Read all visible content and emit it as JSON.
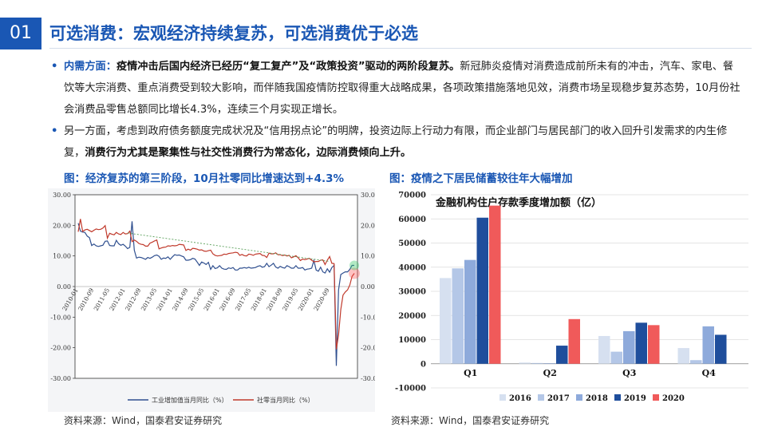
{
  "slide": {
    "number": "01",
    "title": "可选消费：宏观经济持续复苏，可选消费优于必选",
    "bullet1_lead": "内需方面：",
    "bullet1_bold": "疫情冲击后国内经济已经历“复工复产”及“政策投资”驱动的两阶段复苏。",
    "bullet1_rest": "新冠肺炎疫情对消费造成前所未有的冲击，汽车、家电、餐饮等大宗消费、重点消费受到较大影响，而伴随我国疫情防控取得重大战略成果，各项政策措施落地见效，消费市场呈现稳步复苏态势，10月份社会消费品零售总额同比增长4.3%，连续三个月实现正增长。",
    "bullet2_rest": "另一方面，考虑到政府债务额度完成状况及“信用拐点论”的明牌，投资边际上行动力有限，而企业部门与居民部门的收入回升引发需求的内生修复，",
    "bullet2_bold": "消费行为尤其是聚集性与社交性消费行为常态化，边际消费倾向上升。"
  },
  "left_caption": "图：经济复苏的第三阶段，10月社零同比增速达到+4.3%",
  "right_caption": "图：疫情之下居民储蓄较往年大幅增加",
  "left_source": "资料来源：Wind，国泰君安证券研究",
  "right_source": "资料来源：Wind，国泰君安证券研究",
  "colors": {
    "brand": "#1a57b4",
    "industrial": "#2f4f8f",
    "retail": "#c0392b"
  },
  "chart_data": [
    {
      "type": "line",
      "ylim": [
        -30,
        30
      ],
      "yticks_left": [
        "30.00",
        "20.00",
        "10.00",
        "0.00",
        "-10.00",
        "-20.00",
        "-30.00"
      ],
      "yticks_right": [
        "30.00",
        "20.00",
        "10.00",
        "0.00",
        "-10.00",
        "-20.00",
        "-30.00"
      ],
      "x_ticks": [
        "2010-01",
        "2010-09",
        "2011-05",
        "2012-01",
        "2012-09",
        "2013-05",
        "2014-01",
        "2014-09",
        "2015-05",
        "2016-01",
        "2016-09",
        "2017-05",
        "2018-01",
        "2018-09",
        "2019-05",
        "2020-01",
        "2020-09"
      ],
      "series": [
        {
          "name": "工业增加值当月同比（%）",
          "values": [
            20.7,
            18.1,
            17.8,
            17.7,
            16.5,
            16.0,
            13.4,
            13.9,
            13.3,
            13.1,
            13.3,
            13.5,
            14.8,
            14.9,
            13.4,
            13.3,
            13.3,
            15.1,
            14.0,
            13.5,
            13.8,
            13.2,
            12.4,
            12.8,
            21.3,
            11.9,
            9.3,
            9.6,
            9.5,
            9.2,
            8.9,
            9.5,
            9.2,
            9.6,
            10.1,
            10.3,
            9.9,
            8.9,
            9.3,
            9.2,
            9.7,
            8.9,
            9.7,
            10.4,
            10.2,
            10.3,
            10.0,
            9.7,
            8.6,
            8.6,
            8.8,
            9.2,
            9.0,
            8.0,
            6.9,
            8.0,
            7.7,
            7.2,
            7.9,
            5.6,
            6.8,
            5.9,
            6.1,
            6.8,
            6.0,
            5.7,
            5.6,
            6.1,
            5.9,
            6.2,
            5.4,
            5.4,
            6.0,
            6.0,
            6.2,
            6.0,
            6.3,
            6.0,
            6.1,
            6.2,
            6.6,
            6.8,
            6.3,
            6.5,
            7.6,
            6.5,
            7.0,
            7.6,
            6.4,
            6.0,
            6.6,
            6.2,
            6.0,
            6.8,
            6.5,
            6.0,
            6.0,
            6.8,
            6.0,
            6.0,
            6.2,
            5.4,
            5.7,
            5.8,
            6.0,
            8.5,
            5.4,
            5.0,
            6.3,
            4.8,
            4.4,
            5.8,
            4.7,
            6.2,
            6.9,
            -25.9,
            -1.1,
            3.9,
            4.4,
            4.8,
            4.8,
            5.6,
            6.9,
            6.9
          ],
          "x_month_index": "monthly from 2010-01 to 2020-10 (sampled)"
        },
        {
          "name": "社零当月同比（%）",
          "values": [
            17.9,
            22.1,
            18.0,
            18.5,
            18.7,
            18.3,
            17.9,
            18.4,
            18.8,
            18.6,
            18.7,
            19.1,
            19.9,
            15.8,
            17.4,
            17.1,
            16.9,
            17.7,
            17.2,
            17.0,
            17.7,
            17.2,
            17.3,
            18.1,
            14.7,
            15.2,
            14.8,
            14.1,
            13.8,
            13.7,
            13.2,
            13.2,
            14.2,
            14.5,
            14.9,
            15.2,
            12.3,
            12.6,
            12.8,
            12.9,
            13.3,
            13.2,
            13.4,
            13.3,
            13.4,
            13.8,
            13.7,
            13.6,
            11.8,
            12.2,
            11.9,
            12.5,
            12.4,
            12.2,
            11.9,
            12.0,
            11.6,
            11.5,
            11.7,
            11.9,
            10.7,
            10.2,
            10.0,
            10.1,
            10.2,
            10.6,
            10.5,
            10.8,
            10.9,
            11.0,
            11.2,
            11.1,
            10.2,
            10.5,
            10.1,
            10.0,
            10.6,
            10.5,
            10.2,
            10.6,
            10.7,
            10.8,
            10.2,
            10.1,
            9.5,
            10.9,
            10.7,
            10.7,
            11.0,
            10.4,
            10.4,
            10.1,
            10.3,
            10.0,
            10.2,
            9.4,
            9.7,
            10.1,
            9.4,
            8.5,
            9.0,
            8.8,
            9.0,
            9.2,
            8.6,
            8.1,
            8.2,
            8.2,
            8.6,
            8.7,
            7.2,
            8.6,
            9.8,
            7.6,
            7.5,
            -20.5,
            -15.8,
            -7.5,
            -2.8,
            -1.8,
            -1.1,
            0.5,
            3.3,
            4.3
          ]
        }
      ]
    },
    {
      "type": "bar",
      "title": "金融机构住户存款季度增加额（亿）",
      "categories": [
        "Q1",
        "Q2",
        "Q3",
        "Q4"
      ],
      "ylim": [
        -10000,
        70000
      ],
      "yticks": [
        "70000",
        "60000",
        "50000",
        "40000",
        "30000",
        "20000",
        "10000",
        "0",
        "-10000"
      ],
      "series": [
        {
          "name": "2016",
          "color": "#d6e0f0",
          "values": [
            35500,
            500,
            11500,
            6500
          ]
        },
        {
          "name": "2017",
          "color": "#b4c7e7",
          "values": [
            39500,
            300,
            5000,
            1500
          ]
        },
        {
          "name": "2018",
          "color": "#8eaadb",
          "values": [
            43000,
            200,
            13500,
            15500
          ]
        },
        {
          "name": "2019",
          "color": "#1f4e9c",
          "values": [
            60500,
            7500,
            17000,
            12000
          ]
        },
        {
          "name": "2020",
          "color": "#f05a5a",
          "values": [
            65500,
            18500,
            16000,
            0
          ]
        }
      ]
    }
  ]
}
